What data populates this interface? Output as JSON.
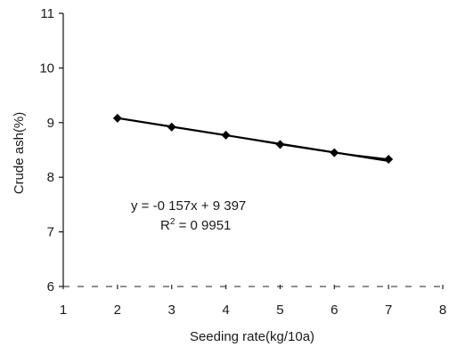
{
  "chart_data": {
    "type": "scatter",
    "title": "",
    "xlabel": "Seeding rate(kg/10a)",
    "ylabel": "Crude ash(%)",
    "xlim": [
      1,
      8
    ],
    "ylim": [
      6,
      11
    ],
    "xticks": [
      "1",
      "2",
      "3",
      "4",
      "5",
      "6",
      "7",
      "8"
    ],
    "yticks": [
      "6",
      "7",
      "8",
      "9",
      "10",
      "11"
    ],
    "grid": false,
    "series": [
      {
        "x": [
          2,
          3,
          4,
          5,
          6,
          7
        ],
        "y": [
          9.08,
          8.92,
          8.77,
          8.6,
          8.45,
          8.33
        ],
        "marker": "diamond",
        "color": "#000000"
      }
    ],
    "trendline": {
      "type": "linear",
      "slope": -0.157,
      "intercept": 9.397,
      "x_range": [
        2,
        7
      ],
      "equation_prefix": "y = -0 157x + 9 397",
      "r2_prefix": "R",
      "r2_sup": "2",
      "r2_value": " = 0 9951"
    }
  }
}
